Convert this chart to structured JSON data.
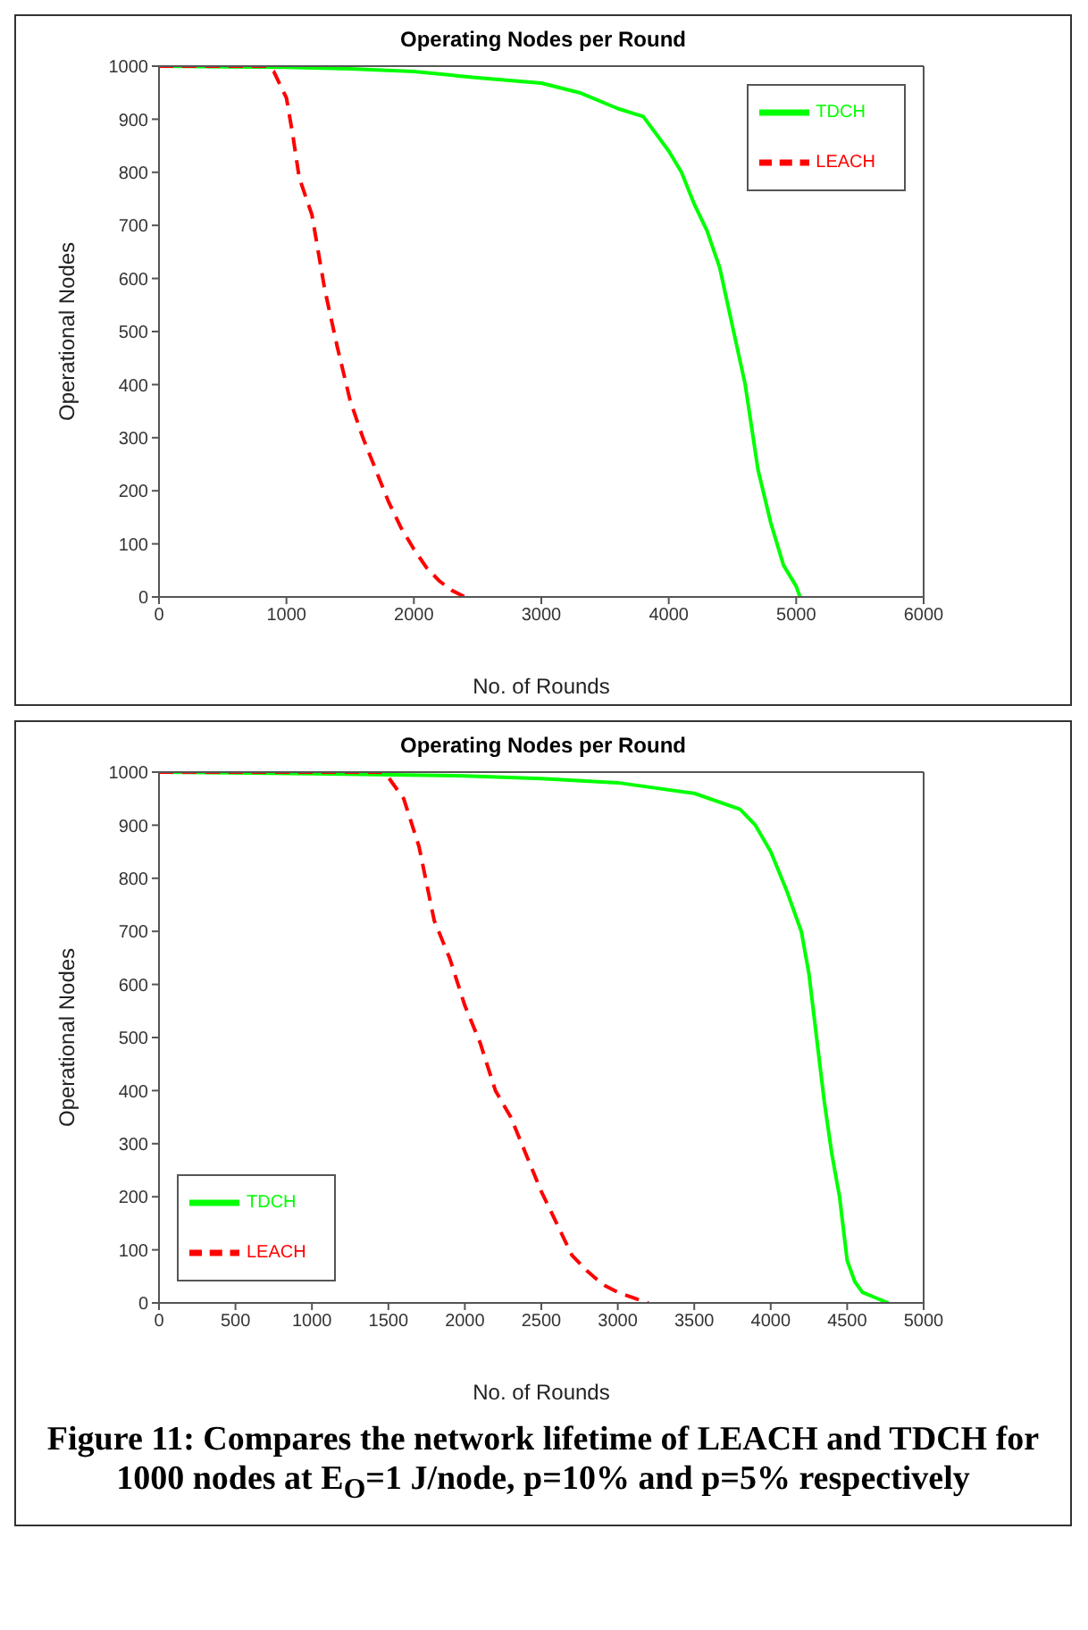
{
  "chart_data": [
    {
      "type": "line",
      "title": "Operating Nodes per Round",
      "xlabel": "No. of Rounds",
      "ylabel": "Operational Nodes",
      "xlim": [
        0,
        6000
      ],
      "xticks": [
        0,
        1000,
        2000,
        3000,
        4000,
        5000,
        6000
      ],
      "ylim": [
        0,
        1000
      ],
      "yticks": [
        0,
        100,
        200,
        300,
        400,
        500,
        600,
        700,
        800,
        900,
        1000
      ],
      "legend": "top right",
      "marker": "none",
      "series": [
        {
          "name": "TDCH",
          "color": "#00ff00",
          "line_style": "solid",
          "x": [
            0,
            1000,
            1500,
            2000,
            2500,
            3000,
            3300,
            3600,
            3800,
            4000,
            4100,
            4200,
            4300,
            4400,
            4500,
            4600,
            4700,
            4800,
            4900,
            5000,
            5030
          ],
          "values": [
            1000,
            998,
            995,
            990,
            978,
            968,
            950,
            920,
            905,
            840,
            800,
            740,
            690,
            620,
            510,
            400,
            240,
            140,
            60,
            20,
            0
          ]
        },
        {
          "name": "LEACH",
          "color": "#ff0000",
          "line_style": "dashed",
          "x": [
            0,
            850,
            900,
            1000,
            1050,
            1100,
            1200,
            1300,
            1400,
            1500,
            1600,
            1700,
            1800,
            1900,
            2000,
            2100,
            2200,
            2300,
            2400
          ],
          "values": [
            1000,
            1000,
            990,
            940,
            870,
            790,
            720,
            580,
            470,
            370,
            300,
            240,
            180,
            130,
            90,
            55,
            30,
            12,
            0
          ]
        }
      ]
    },
    {
      "type": "line",
      "title": "Operating Nodes per Round",
      "xlabel": "No. of Rounds",
      "ylabel": "Operational Nodes",
      "xlim": [
        0,
        5000
      ],
      "xticks": [
        0,
        500,
        1000,
        1500,
        2000,
        2500,
        3000,
        3500,
        4000,
        4500,
        5000
      ],
      "ylim": [
        0,
        1000
      ],
      "yticks": [
        0,
        100,
        200,
        300,
        400,
        500,
        600,
        700,
        800,
        900,
        1000
      ],
      "legend": "bottom left",
      "marker": "none",
      "annotations": [
        "Figure 11: Compares the network lifetime of LEACH and TDCH for 1000 nodes at E$_{O}$=1 J/node, p=10% and p=5% respectively"
      ],
      "series": [
        {
          "name": "TDCH",
          "color": "#00ff00",
          "line_style": "solid",
          "x": [
            0,
            1000,
            2000,
            2500,
            3000,
            3500,
            3800,
            3900,
            4000,
            4100,
            4200,
            4250,
            4300,
            4350,
            4400,
            4450,
            4500,
            4550,
            4600,
            4700,
            4770
          ],
          "values": [
            1000,
            997,
            993,
            988,
            980,
            960,
            930,
            900,
            850,
            780,
            700,
            620,
            500,
            380,
            280,
            200,
            80,
            40,
            20,
            8,
            0
          ]
        },
        {
          "name": "LEACH",
          "color": "#ff0000",
          "line_style": "dashed",
          "x": [
            0,
            1450,
            1500,
            1600,
            1700,
            1750,
            1800,
            1900,
            2000,
            2100,
            2200,
            2300,
            2400,
            2500,
            2600,
            2700,
            2800,
            2900,
            3000,
            3100,
            3200
          ],
          "values": [
            1000,
            1000,
            990,
            950,
            860,
            790,
            720,
            650,
            560,
            490,
            400,
            350,
            280,
            210,
            150,
            90,
            60,
            35,
            20,
            10,
            0
          ]
        }
      ]
    }
  ]
}
